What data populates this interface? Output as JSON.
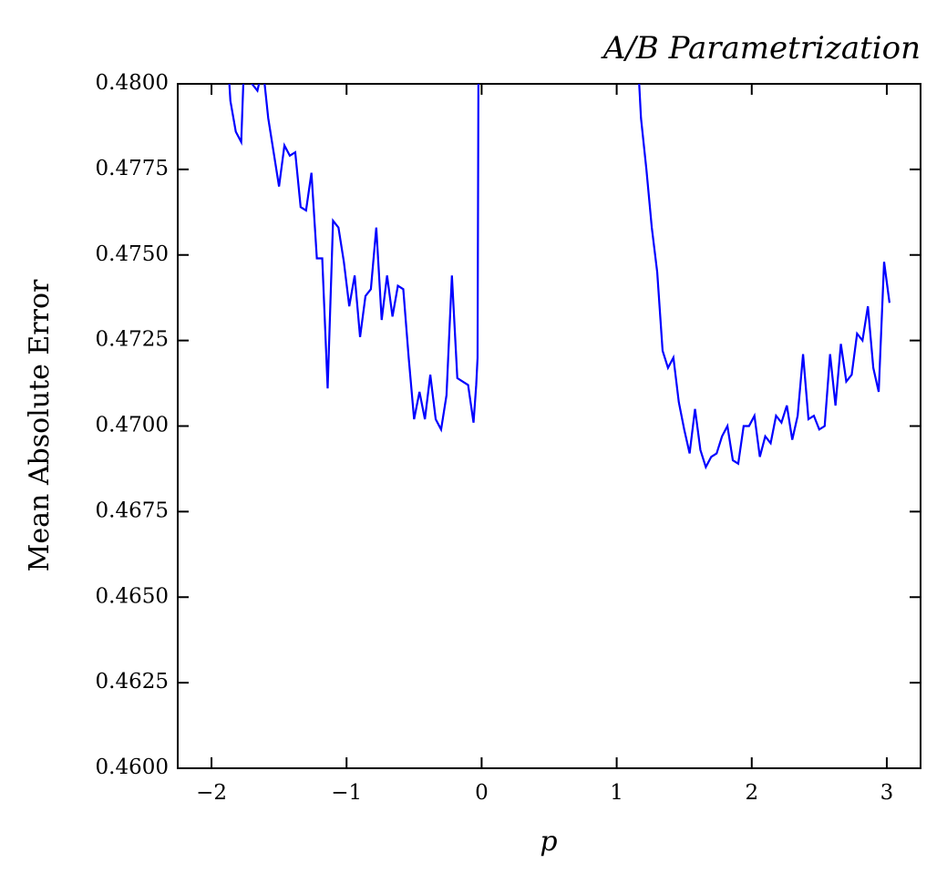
{
  "chart_data": {
    "type": "line",
    "title": "A/B Parametrization",
    "xlabel": "p",
    "ylabel": "Mean Absolute Error",
    "x": [
      -1.88,
      -1.86,
      -1.82,
      -1.78,
      -1.76,
      -1.7,
      -1.66,
      -1.62,
      -1.58,
      -1.54,
      -1.5,
      -1.46,
      -1.42,
      -1.38,
      -1.34,
      -1.3,
      -1.26,
      -1.22,
      -1.18,
      -1.14,
      -1.1,
      -1.06,
      -1.02,
      -0.98,
      -0.94,
      -0.9,
      -0.86,
      -0.82,
      -0.78,
      -0.74,
      -0.7,
      -0.66,
      -0.62,
      -0.58,
      -0.54,
      -0.5,
      -0.46,
      -0.42,
      -0.38,
      -0.34,
      -0.3,
      -0.26,
      -0.22,
      -0.18,
      -0.14,
      -0.1,
      -0.06,
      -0.04,
      -0.03,
      -0.02,
      1.16,
      1.18,
      1.22,
      1.26,
      1.3,
      1.34,
      1.38,
      1.42,
      1.46,
      1.5,
      1.54,
      1.58,
      1.62,
      1.66,
      1.7,
      1.74,
      1.78,
      1.82,
      1.86,
      1.9,
      1.94,
      1.98,
      2.02,
      2.06,
      2.1,
      2.14,
      2.18,
      2.22,
      2.26,
      2.3,
      2.34,
      2.38,
      2.42,
      2.46,
      2.5,
      2.54,
      2.58,
      2.62,
      2.66,
      2.7,
      2.74,
      2.78,
      2.82,
      2.86,
      2.9,
      2.94,
      2.98,
      3.02
    ],
    "series": [
      {
        "name": "MAE",
        "color": "#0000ff",
        "values": [
          0.4808,
          0.4795,
          0.4786,
          0.4783,
          0.4805,
          0.48,
          0.4798,
          0.4805,
          0.479,
          0.478,
          0.477,
          0.4782,
          0.4779,
          0.478,
          0.4764,
          0.4763,
          0.4774,
          0.4749,
          0.4749,
          0.4711,
          0.476,
          0.4758,
          0.4748,
          0.4735,
          0.4744,
          0.4726,
          0.4738,
          0.474,
          0.4758,
          0.4731,
          0.4744,
          0.4732,
          0.4741,
          0.474,
          0.472,
          0.4702,
          0.471,
          0.4702,
          0.4715,
          0.4702,
          0.4699,
          0.4709,
          0.4744,
          0.4714,
          0.4713,
          0.4712,
          0.4701,
          0.4712,
          0.472,
          0.485,
          0.4805,
          0.479,
          0.4775,
          0.4758,
          0.4745,
          0.4722,
          0.4717,
          0.472,
          0.4707,
          0.4699,
          0.4692,
          0.4705,
          0.4693,
          0.4688,
          0.4691,
          0.4692,
          0.4697,
          0.47,
          0.469,
          0.4689,
          0.47,
          0.47,
          0.4703,
          0.4691,
          0.4697,
          0.4695,
          0.4703,
          0.4701,
          0.4706,
          0.4696,
          0.4703,
          0.4721,
          0.4702,
          0.4703,
          0.4699,
          0.47,
          0.4721,
          0.4706,
          0.4724,
          0.4713,
          0.4715,
          0.4727,
          0.4725,
          0.4735,
          0.4717,
          0.471,
          0.4748,
          0.4736
        ]
      }
    ],
    "xlim": [
      -2.25,
      3.25
    ],
    "ylim": [
      0.46,
      0.48
    ],
    "xticks": [
      {
        "value": -2,
        "label": "−2"
      },
      {
        "value": -1,
        "label": "−1"
      },
      0,
      1,
      2,
      3
    ],
    "yticks": [
      {
        "value": 0.46,
        "label": "0.4600"
      },
      {
        "value": 0.4625,
        "label": "0.4625"
      },
      {
        "value": 0.465,
        "label": "0.4650"
      },
      {
        "value": 0.4675,
        "label": "0.4675"
      },
      {
        "value": 0.47,
        "label": "0.4700"
      },
      {
        "value": 0.4725,
        "label": "0.4725"
      },
      {
        "value": 0.475,
        "label": "0.4750"
      },
      {
        "value": 0.4775,
        "label": "0.4775"
      },
      {
        "value": 0.48,
        "label": "0.4800"
      }
    ]
  }
}
